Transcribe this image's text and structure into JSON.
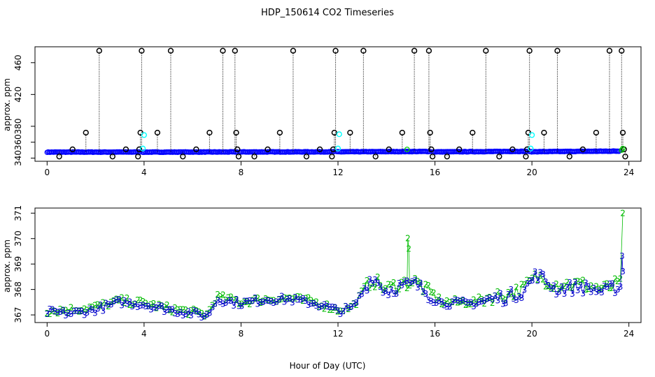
{
  "chart_data": [
    {
      "type": "scatter",
      "title": "HDP_150614  CO2 Timeseries",
      "xlabel": "",
      "ylabel": "approx. ppm",
      "xlim": [
        -0.5,
        24.5
      ],
      "ylim": [
        336,
        480
      ],
      "x_ticks": [
        0,
        4,
        8,
        12,
        16,
        20,
        24
      ],
      "y_ticks": [
        340,
        360,
        380,
        420,
        460
      ],
      "series": [
        {
          "name": "baseline",
          "color": "#0000ff",
          "marker": "circle",
          "segments": [
            [
              0.0,
              3.85,
              347.5,
              347.6
            ],
            [
              3.95,
              7.85,
              347.5,
              347.7
            ],
            [
              7.95,
              11.85,
              347.7,
              347.9
            ],
            [
              11.95,
              15.8,
              347.9,
              348.3
            ],
            [
              15.9,
              19.8,
              347.8,
              348.5
            ],
            [
              19.9,
              23.6,
              348.0,
              348.8
            ]
          ]
        },
        {
          "name": "spikes",
          "color": "#000000",
          "marker": "circle",
          "points": [
            [
              0.5,
              342
            ],
            [
              1.05,
              351
            ],
            [
              1.6,
              372
            ],
            [
              2.15,
              475
            ],
            [
              2.7,
              342
            ],
            [
              3.25,
              351
            ],
            [
              3.75,
              342
            ],
            [
              3.8,
              351
            ],
            [
              3.85,
              372
            ],
            [
              3.9,
              475
            ],
            [
              4.55,
              372
            ],
            [
              5.1,
              475
            ],
            [
              5.6,
              342
            ],
            [
              6.15,
              351
            ],
            [
              6.7,
              372
            ],
            [
              7.25,
              475
            ],
            [
              7.75,
              475
            ],
            [
              7.8,
              372
            ],
            [
              7.85,
              351
            ],
            [
              7.9,
              342
            ],
            [
              8.55,
              342
            ],
            [
              9.1,
              351
            ],
            [
              9.6,
              372
            ],
            [
              10.15,
              475
            ],
            [
              10.7,
              342
            ],
            [
              11.25,
              351
            ],
            [
              11.75,
              342
            ],
            [
              11.8,
              351
            ],
            [
              11.85,
              372
            ],
            [
              11.9,
              475
            ],
            [
              12.5,
              372
            ],
            [
              13.05,
              475
            ],
            [
              13.55,
              342
            ],
            [
              14.1,
              351
            ],
            [
              14.65,
              372
            ],
            [
              15.15,
              475
            ],
            [
              15.75,
              475
            ],
            [
              15.8,
              372
            ],
            [
              15.85,
              351
            ],
            [
              15.9,
              342
            ],
            [
              16.5,
              342
            ],
            [
              17.0,
              351
            ],
            [
              17.55,
              372
            ],
            [
              18.1,
              475
            ],
            [
              18.65,
              342
            ],
            [
              19.2,
              351
            ],
            [
              19.75,
              342
            ],
            [
              19.8,
              351
            ],
            [
              19.85,
              372
            ],
            [
              19.9,
              475
            ],
            [
              20.5,
              372
            ],
            [
              21.05,
              475
            ],
            [
              21.55,
              342
            ],
            [
              22.1,
              351
            ],
            [
              22.65,
              372
            ],
            [
              23.2,
              475
            ],
            [
              23.7,
              475
            ],
            [
              23.75,
              372
            ],
            [
              23.8,
              351
            ],
            [
              23.85,
              342
            ]
          ]
        },
        {
          "name": "cyan",
          "color": "#00ffff",
          "marker": "circle",
          "points": [
            [
              3.95,
              352
            ],
            [
              4.0,
              369
            ],
            [
              12.0,
              352
            ],
            [
              12.05,
              370
            ],
            [
              19.95,
              352
            ],
            [
              20.0,
              369
            ]
          ]
        },
        {
          "name": "end-green",
          "color": "#00cc00",
          "marker": "circle",
          "points": [
            [
              14.85,
              351
            ],
            [
              23.7,
              350
            ],
            [
              23.75,
              352
            ]
          ]
        }
      ]
    },
    {
      "type": "scatter",
      "title": "",
      "xlabel": "Hour of Day (UTC)",
      "ylabel": "approx. ppm",
      "xlim": [
        -0.5,
        24.5
      ],
      "ylim": [
        366.7,
        371.2
      ],
      "x_ticks": [
        0,
        4,
        8,
        12,
        16,
        20,
        24
      ],
      "y_ticks": [
        367,
        368,
        369,
        370,
        371
      ],
      "series": [
        {
          "name": "2",
          "label": "2",
          "color": "#00bb00",
          "profile": [
            [
              0,
              367.15
            ],
            [
              1,
              367.2
            ],
            [
              2,
              367.3
            ],
            [
              3,
              367.55
            ],
            [
              4,
              367.45
            ],
            [
              5,
              367.25
            ],
            [
              6,
              367.1
            ],
            [
              6.6,
              367.0
            ],
            [
              7,
              367.7
            ],
            [
              8,
              367.5
            ],
            [
              9,
              367.6
            ],
            [
              10,
              367.65
            ],
            [
              11,
              367.5
            ],
            [
              12,
              367.2
            ],
            [
              12.6,
              367.3
            ],
            [
              13.4,
              368.4
            ],
            [
              14,
              368.0
            ],
            [
              14.5,
              368.2
            ],
            [
              15.2,
              368.3
            ],
            [
              15.6,
              368.0
            ],
            [
              16.3,
              367.5
            ],
            [
              17.6,
              367.5
            ],
            [
              18.3,
              367.7
            ],
            [
              19.0,
              367.8
            ],
            [
              19.6,
              368.0
            ],
            [
              20.2,
              368.5
            ],
            [
              21.0,
              368.2
            ],
            [
              22.0,
              368.2
            ],
            [
              23.0,
              368.0
            ],
            [
              23.5,
              368.2
            ]
          ],
          "spikes": [
            [
              14.88,
              370.0
            ],
            [
              14.92,
              369.6
            ],
            [
              23.75,
              371.0
            ]
          ]
        },
        {
          "name": "3",
          "label": "3",
          "color": "#0000cc",
          "profile": [
            [
              0,
              367.1
            ],
            [
              1,
              367.05
            ],
            [
              2,
              367.2
            ],
            [
              3,
              367.5
            ],
            [
              4,
              367.4
            ],
            [
              5,
              367.2
            ],
            [
              6,
              367.05
            ],
            [
              6.6,
              366.95
            ],
            [
              7,
              367.6
            ],
            [
              8,
              367.45
            ],
            [
              9,
              367.6
            ],
            [
              10,
              367.6
            ],
            [
              11,
              367.45
            ],
            [
              12,
              367.15
            ],
            [
              12.6,
              367.25
            ],
            [
              13.4,
              368.5
            ],
            [
              14,
              367.9
            ],
            [
              14.5,
              368.1
            ],
            [
              15.2,
              368.2
            ],
            [
              15.6,
              367.9
            ],
            [
              16.3,
              367.45
            ],
            [
              17.6,
              367.45
            ],
            [
              18.3,
              367.6
            ],
            [
              19.0,
              367.7
            ],
            [
              19.6,
              367.9
            ],
            [
              20.2,
              368.6
            ],
            [
              21.0,
              368.0
            ],
            [
              22.0,
              368.1
            ],
            [
              23.0,
              367.9
            ],
            [
              23.5,
              368.1
            ]
          ],
          "spikes": [
            [
              23.72,
              369.3
            ],
            [
              23.75,
              368.7
            ]
          ]
        }
      ]
    }
  ]
}
